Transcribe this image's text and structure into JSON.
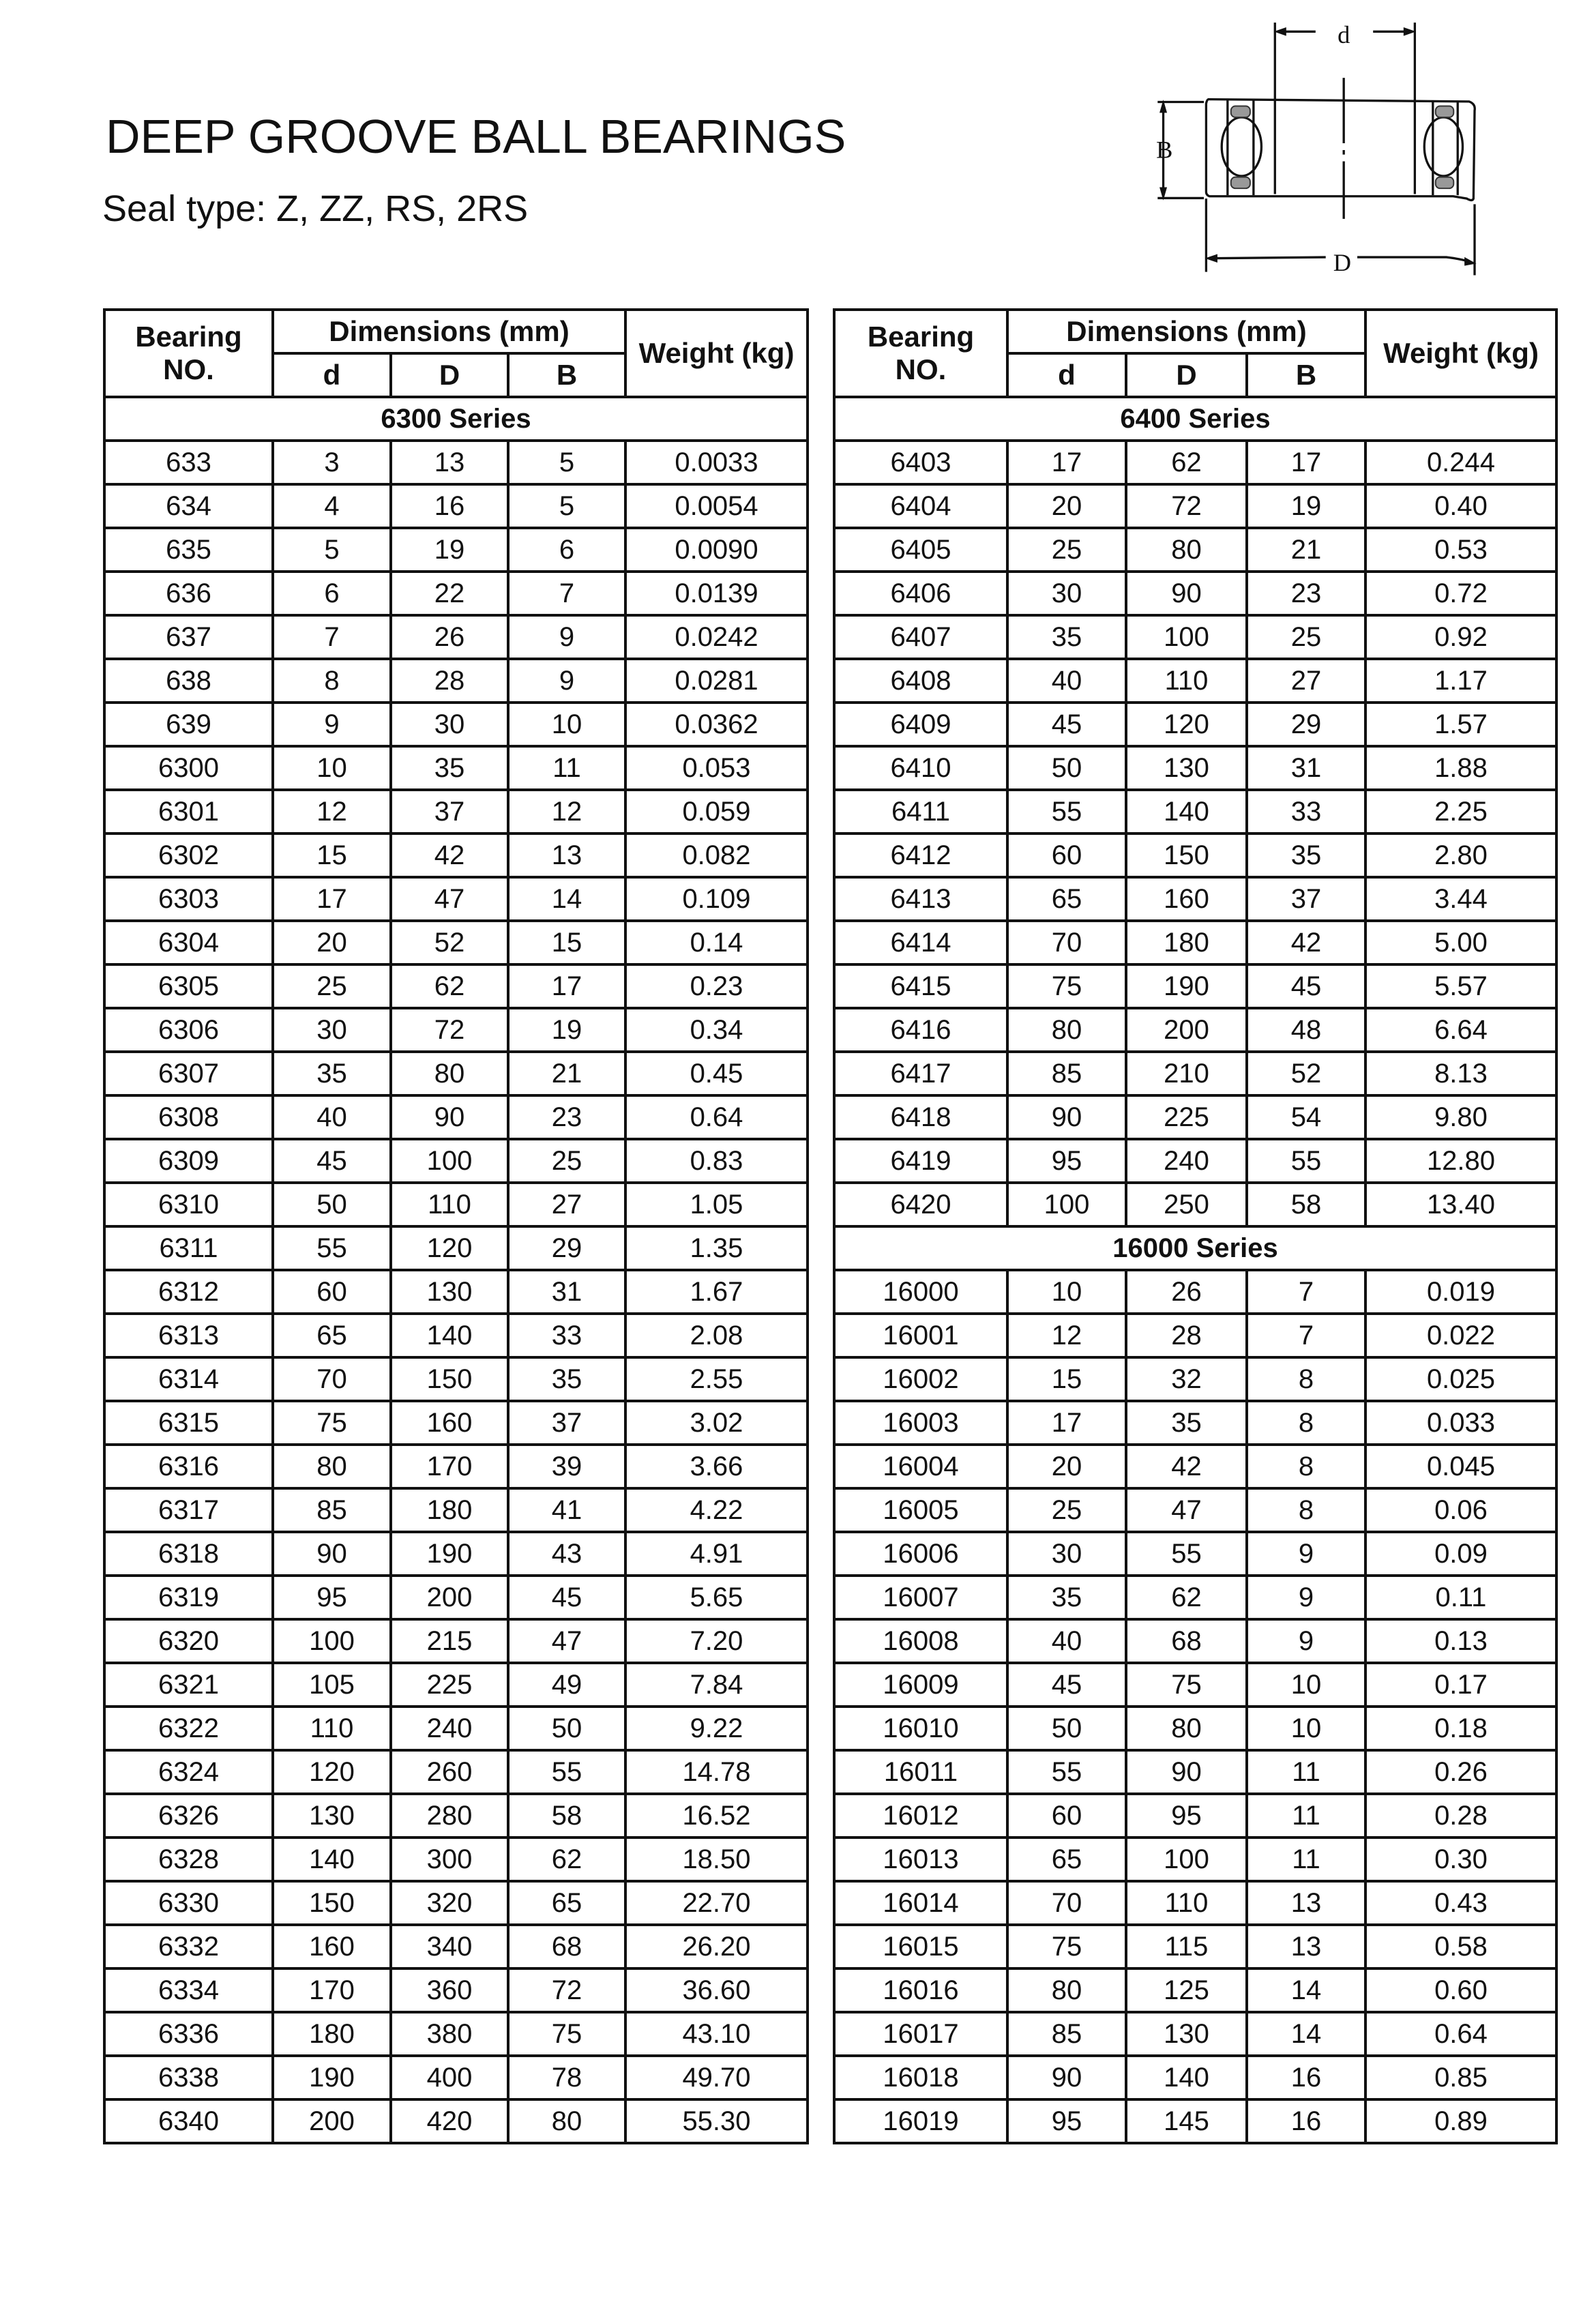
{
  "title": "DEEP GROOVE BALL BEARINGS",
  "subtitle": "Seal type: Z, ZZ, RS, 2RS",
  "diagram": {
    "d_label": "d",
    "D_label": "D",
    "B_label": "B"
  },
  "headers": {
    "bearing_line1": "Bearing",
    "bearing_line2": "NO.",
    "dimensions": "Dimensions (mm)",
    "d": "d",
    "D": "D",
    "B": "B",
    "weight": "Weight (kg)"
  },
  "left_table": {
    "sections": [
      {
        "series": "6300 Series",
        "rows": [
          [
            "633",
            "3",
            "13",
            "5",
            "0.0033"
          ],
          [
            "634",
            "4",
            "16",
            "5",
            "0.0054"
          ],
          [
            "635",
            "5",
            "19",
            "6",
            "0.0090"
          ],
          [
            "636",
            "6",
            "22",
            "7",
            "0.0139"
          ],
          [
            "637",
            "7",
            "26",
            "9",
            "0.0242"
          ],
          [
            "638",
            "8",
            "28",
            "9",
            "0.0281"
          ],
          [
            "639",
            "9",
            "30",
            "10",
            "0.0362"
          ],
          [
            "6300",
            "10",
            "35",
            "11",
            "0.053"
          ],
          [
            "6301",
            "12",
            "37",
            "12",
            "0.059"
          ],
          [
            "6302",
            "15",
            "42",
            "13",
            "0.082"
          ],
          [
            "6303",
            "17",
            "47",
            "14",
            "0.109"
          ],
          [
            "6304",
            "20",
            "52",
            "15",
            "0.14"
          ],
          [
            "6305",
            "25",
            "62",
            "17",
            "0.23"
          ],
          [
            "6306",
            "30",
            "72",
            "19",
            "0.34"
          ],
          [
            "6307",
            "35",
            "80",
            "21",
            "0.45"
          ],
          [
            "6308",
            "40",
            "90",
            "23",
            "0.64"
          ],
          [
            "6309",
            "45",
            "100",
            "25",
            "0.83"
          ],
          [
            "6310",
            "50",
            "110",
            "27",
            "1.05"
          ],
          [
            "6311",
            "55",
            "120",
            "29",
            "1.35"
          ],
          [
            "6312",
            "60",
            "130",
            "31",
            "1.67"
          ],
          [
            "6313",
            "65",
            "140",
            "33",
            "2.08"
          ],
          [
            "6314",
            "70",
            "150",
            "35",
            "2.55"
          ],
          [
            "6315",
            "75",
            "160",
            "37",
            "3.02"
          ],
          [
            "6316",
            "80",
            "170",
            "39",
            "3.66"
          ],
          [
            "6317",
            "85",
            "180",
            "41",
            "4.22"
          ],
          [
            "6318",
            "90",
            "190",
            "43",
            "4.91"
          ],
          [
            "6319",
            "95",
            "200",
            "45",
            "5.65"
          ],
          [
            "6320",
            "100",
            "215",
            "47",
            "7.20"
          ],
          [
            "6321",
            "105",
            "225",
            "49",
            "7.84"
          ],
          [
            "6322",
            "110",
            "240",
            "50",
            "9.22"
          ],
          [
            "6324",
            "120",
            "260",
            "55",
            "14.78"
          ],
          [
            "6326",
            "130",
            "280",
            "58",
            "16.52"
          ],
          [
            "6328",
            "140",
            "300",
            "62",
            "18.50"
          ],
          [
            "6330",
            "150",
            "320",
            "65",
            "22.70"
          ],
          [
            "6332",
            "160",
            "340",
            "68",
            "26.20"
          ],
          [
            "6334",
            "170",
            "360",
            "72",
            "36.60"
          ],
          [
            "6336",
            "180",
            "380",
            "75",
            "43.10"
          ],
          [
            "6338",
            "190",
            "400",
            "78",
            "49.70"
          ],
          [
            "6340",
            "200",
            "420",
            "80",
            "55.30"
          ]
        ]
      }
    ]
  },
  "right_table": {
    "sections": [
      {
        "series": "6400 Series",
        "rows": [
          [
            "6403",
            "17",
            "62",
            "17",
            "0.244"
          ],
          [
            "6404",
            "20",
            "72",
            "19",
            "0.40"
          ],
          [
            "6405",
            "25",
            "80",
            "21",
            "0.53"
          ],
          [
            "6406",
            "30",
            "90",
            "23",
            "0.72"
          ],
          [
            "6407",
            "35",
            "100",
            "25",
            "0.92"
          ],
          [
            "6408",
            "40",
            "110",
            "27",
            "1.17"
          ],
          [
            "6409",
            "45",
            "120",
            "29",
            "1.57"
          ],
          [
            "6410",
            "50",
            "130",
            "31",
            "1.88"
          ],
          [
            "6411",
            "55",
            "140",
            "33",
            "2.25"
          ],
          [
            "6412",
            "60",
            "150",
            "35",
            "2.80"
          ],
          [
            "6413",
            "65",
            "160",
            "37",
            "3.44"
          ],
          [
            "6414",
            "70",
            "180",
            "42",
            "5.00"
          ],
          [
            "6415",
            "75",
            "190",
            "45",
            "5.57"
          ],
          [
            "6416",
            "80",
            "200",
            "48",
            "6.64"
          ],
          [
            "6417",
            "85",
            "210",
            "52",
            "8.13"
          ],
          [
            "6418",
            "90",
            "225",
            "54",
            "9.80"
          ],
          [
            "6419",
            "95",
            "240",
            "55",
            "12.80"
          ],
          [
            "6420",
            "100",
            "250",
            "58",
            "13.40"
          ]
        ]
      },
      {
        "series": "16000 Series",
        "rows": [
          [
            "16000",
            "10",
            "26",
            "7",
            "0.019"
          ],
          [
            "16001",
            "12",
            "28",
            "7",
            "0.022"
          ],
          [
            "16002",
            "15",
            "32",
            "8",
            "0.025"
          ],
          [
            "16003",
            "17",
            "35",
            "8",
            "0.033"
          ],
          [
            "16004",
            "20",
            "42",
            "8",
            "0.045"
          ],
          [
            "16005",
            "25",
            "47",
            "8",
            "0.06"
          ],
          [
            "16006",
            "30",
            "55",
            "9",
            "0.09"
          ],
          [
            "16007",
            "35",
            "62",
            "9",
            "0.11"
          ],
          [
            "16008",
            "40",
            "68",
            "9",
            "0.13"
          ],
          [
            "16009",
            "45",
            "75",
            "10",
            "0.17"
          ],
          [
            "16010",
            "50",
            "80",
            "10",
            "0.18"
          ],
          [
            "16011",
            "55",
            "90",
            "11",
            "0.26"
          ],
          [
            "16012",
            "60",
            "95",
            "11",
            "0.28"
          ],
          [
            "16013",
            "65",
            "100",
            "11",
            "0.30"
          ],
          [
            "16014",
            "70",
            "110",
            "13",
            "0.43"
          ],
          [
            "16015",
            "75",
            "115",
            "13",
            "0.58"
          ],
          [
            "16016",
            "80",
            "125",
            "14",
            "0.60"
          ],
          [
            "16017",
            "85",
            "130",
            "14",
            "0.64"
          ],
          [
            "16018",
            "90",
            "140",
            "16",
            "0.85"
          ],
          [
            "16019",
            "95",
            "145",
            "16",
            "0.89"
          ]
        ]
      }
    ]
  }
}
